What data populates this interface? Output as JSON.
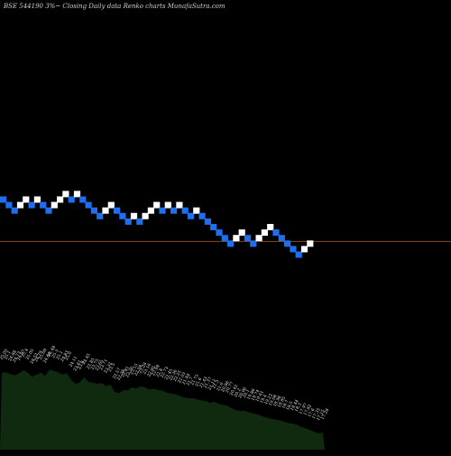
{
  "header": {
    "title": "BSE 544190  3%~  Closing Daily data  Renko  charts MunafaSutra.com"
  },
  "chart_data": {
    "type": "renko",
    "title": "BSE 544190  3%~  Closing Daily data  Renko  charts MunafaSutra.com",
    "reference_line": 21.2,
    "brick_colors": {
      "up": "#ffffff",
      "down": "#1e6ff0"
    },
    "line_color": "#8b4a22",
    "bricks": [
      {
        "dir": "down",
        "value": 25.0
      },
      {
        "dir": "down",
        "value": 24.5
      },
      {
        "dir": "down",
        "value": 24.0
      },
      {
        "dir": "up",
        "value": 24.5
      },
      {
        "dir": "up",
        "value": 25.0
      },
      {
        "dir": "down",
        "value": 24.5
      },
      {
        "dir": "up",
        "value": 25.0
      },
      {
        "dir": "down",
        "value": 24.5
      },
      {
        "dir": "down",
        "value": 24.0
      },
      {
        "dir": "up",
        "value": 24.5
      },
      {
        "dir": "up",
        "value": 25.0
      },
      {
        "dir": "up",
        "value": 25.5
      },
      {
        "dir": "down",
        "value": 25.0
      },
      {
        "dir": "up",
        "value": 25.5
      },
      {
        "dir": "down",
        "value": 25.0
      },
      {
        "dir": "down",
        "value": 24.5
      },
      {
        "dir": "down",
        "value": 24.0
      },
      {
        "dir": "down",
        "value": 23.5
      },
      {
        "dir": "up",
        "value": 24.0
      },
      {
        "dir": "up",
        "value": 24.5
      },
      {
        "dir": "down",
        "value": 24.0
      },
      {
        "dir": "down",
        "value": 23.5
      },
      {
        "dir": "down",
        "value": 23.0
      },
      {
        "dir": "up",
        "value": 23.5
      },
      {
        "dir": "down",
        "value": 23.0
      },
      {
        "dir": "up",
        "value": 23.5
      },
      {
        "dir": "up",
        "value": 24.0
      },
      {
        "dir": "up",
        "value": 24.5
      },
      {
        "dir": "down",
        "value": 24.0
      },
      {
        "dir": "up",
        "value": 24.5
      },
      {
        "dir": "down",
        "value": 24.0
      },
      {
        "dir": "up",
        "value": 24.5
      },
      {
        "dir": "down",
        "value": 24.0
      },
      {
        "dir": "down",
        "value": 23.5
      },
      {
        "dir": "up",
        "value": 24.0
      },
      {
        "dir": "down",
        "value": 23.5
      },
      {
        "dir": "down",
        "value": 23.0
      },
      {
        "dir": "down",
        "value": 22.5
      },
      {
        "dir": "down",
        "value": 22.0
      },
      {
        "dir": "down",
        "value": 21.5
      },
      {
        "dir": "down",
        "value": 21.0
      },
      {
        "dir": "up",
        "value": 21.5
      },
      {
        "dir": "up",
        "value": 22.0
      },
      {
        "dir": "down",
        "value": 21.5
      },
      {
        "dir": "down",
        "value": 21.0
      },
      {
        "dir": "up",
        "value": 21.5
      },
      {
        "dir": "up",
        "value": 22.0
      },
      {
        "dir": "up",
        "value": 22.5
      },
      {
        "dir": "down",
        "value": 22.0
      },
      {
        "dir": "down",
        "value": 21.5
      },
      {
        "dir": "down",
        "value": 21.0
      },
      {
        "dir": "down",
        "value": 20.5
      },
      {
        "dir": "down",
        "value": 20.0
      },
      {
        "dir": "up",
        "value": 20.5
      },
      {
        "dir": "up",
        "value": 21.0
      }
    ],
    "bottom_labels": [
      "25.05",
      "25.1",
      "24.88",
      "24.73",
      "24.97",
      "25.4",
      "25.05",
      "24.52",
      "24.79",
      "25.09",
      "24.64",
      "25.48",
      "25.3",
      "25.1",
      "24.83",
      "25.0",
      "24.11",
      "23.61",
      "23.8",
      "24.45",
      "23.85",
      "23.75",
      "23.65",
      "23.71",
      "23.32",
      "23.5",
      "22.57",
      "22.38",
      "22.81",
      "22.76",
      "23.15",
      "22.98",
      "23.28",
      "23.16",
      "22.85",
      "22.98",
      "22.8",
      "22.73",
      "22.45",
      "22.36",
      "22.25",
      "22.03",
      "21.84",
      "21.7",
      "21.75",
      "21.6",
      "21.43",
      "21.37",
      "21.12",
      "21.3",
      "21.0",
      "20.86",
      "20.77",
      "20.42",
      "20.2",
      "20.06",
      "20.1",
      "19.86",
      "19.74",
      "19.61",
      "19.4",
      "19.22",
      "19.08",
      "18.96",
      "18.85",
      "18.7",
      "18.5",
      "18.44",
      "18.3",
      "17.97",
      "17.82",
      "17.6",
      "17.35",
      "17.15",
      "17.28"
    ]
  }
}
